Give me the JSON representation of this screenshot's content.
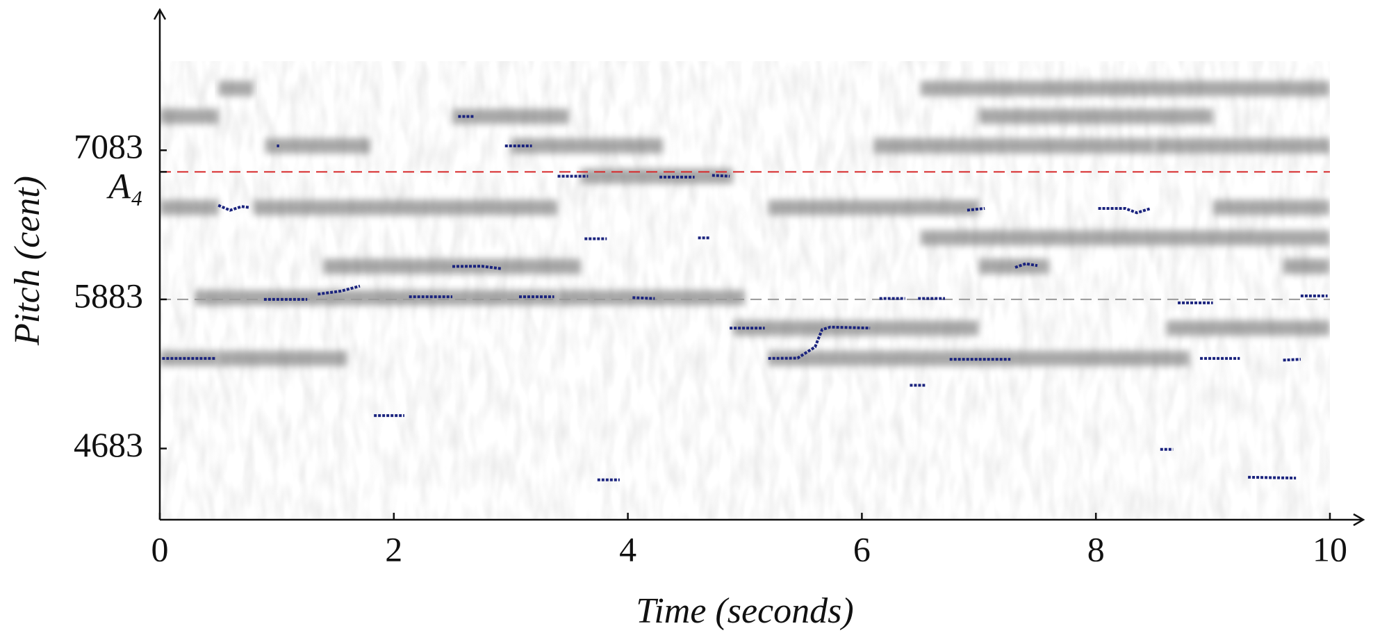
{
  "chart_data": {
    "type": "line",
    "x_label": "Time (seconds)",
    "y_label": "Pitch (cent)",
    "xlim": [
      0,
      10
    ],
    "xticks": [
      0,
      2,
      4,
      6,
      8,
      10
    ],
    "ylim": [
      4110,
      7800
    ],
    "yticks": [
      4683,
      5883,
      7083,
      {
        "value": 6909,
        "label": "A₄"
      }
    ],
    "reference_lines": [
      {
        "value": 6909,
        "color": "#d62728"
      },
      {
        "value": 5883,
        "color": "#999999"
      }
    ],
    "spectrogram": {
      "color": "#6e6e6e",
      "segments": [
        {
          "start": 0,
          "end": 0.5,
          "pitch": 5408
        },
        {
          "start": 0.5,
          "end": 1.6,
          "pitch": 5408
        },
        {
          "start": 0,
          "end": 0.5,
          "pitch": 6622
        },
        {
          "start": 0.8,
          "end": 3.4,
          "pitch": 6622
        },
        {
          "start": 0,
          "end": 0.5,
          "pitch": 7355
        },
        {
          "start": 0.5,
          "end": 0.8,
          "pitch": 7580
        },
        {
          "start": 0.9,
          "end": 1.8,
          "pitch": 7118
        },
        {
          "start": 1.4,
          "end": 3.6,
          "pitch": 6148
        },
        {
          "start": 0.3,
          "end": 3.4,
          "pitch": 5897
        },
        {
          "start": 3.4,
          "end": 5.0,
          "pitch": 5897
        },
        {
          "start": 4.9,
          "end": 7.0,
          "pitch": 5652
        },
        {
          "start": 5.2,
          "end": 8.8,
          "pitch": 5408
        },
        {
          "start": 8.6,
          "end": 10,
          "pitch": 5652
        },
        {
          "start": 5.2,
          "end": 7.0,
          "pitch": 6622
        },
        {
          "start": 6.5,
          "end": 10,
          "pitch": 6378
        },
        {
          "start": 6.1,
          "end": 8.5,
          "pitch": 7118
        },
        {
          "start": 7.0,
          "end": 9.0,
          "pitch": 7355
        },
        {
          "start": 8.5,
          "end": 10,
          "pitch": 7118
        },
        {
          "start": 2.5,
          "end": 3.5,
          "pitch": 7355
        },
        {
          "start": 3.6,
          "end": 4.9,
          "pitch": 6874
        },
        {
          "start": 3.0,
          "end": 4.3,
          "pitch": 7118
        },
        {
          "start": 9.0,
          "end": 10,
          "pitch": 6622
        },
        {
          "start": 7.0,
          "end": 7.6,
          "pitch": 6148
        },
        {
          "start": 9.6,
          "end": 10,
          "pitch": 6148
        },
        {
          "start": 6.5,
          "end": 10,
          "pitch": 7580
        }
      ]
    },
    "series": [
      {
        "color": "#1a237e",
        "x": [
          0.02,
          0.48,
          null,
          0.5,
          0.6,
          0.7,
          0.77,
          null,
          0.89,
          1.26,
          null,
          1.0,
          1.02,
          null,
          1.35,
          1.55,
          1.71,
          null,
          2.13,
          2.5,
          null,
          2.5,
          2.75,
          2.92,
          null,
          2.55,
          2.69,
          null,
          2.95,
          3.18,
          null,
          3.07,
          3.37,
          null,
          3.4,
          3.66,
          null,
          3.63,
          3.82,
          null,
          4.04,
          4.23,
          null,
          4.27,
          4.57,
          null,
          4.6,
          4.7,
          null,
          4.72,
          4.87,
          null,
          4.87,
          5.17,
          null,
          5.2,
          5.45,
          5.6,
          5.66,
          5.73,
          6.07,
          null,
          6.15,
          6.37,
          null,
          6.48,
          6.71,
          null,
          6.75,
          7.27,
          null,
          6.9,
          7.05,
          null,
          7.31,
          7.4,
          7.5,
          null,
          8.02,
          8.25,
          8.35,
          8.47,
          null,
          8.7,
          9.0,
          null,
          8.89,
          9.23,
          null,
          9.6,
          9.75,
          null,
          9.75,
          9.98,
          null,
          9.3,
          9.71,
          null,
          1.83,
          2.09,
          null,
          8.55,
          8.66,
          null,
          6.41,
          6.54,
          null,
          3.74,
          3.93
        ],
        "y": [
          5408,
          5408,
          null,
          6640,
          6600,
          6630,
          6622,
          null,
          5883,
          5883,
          null,
          7118,
          7118,
          null,
          5925,
          5950,
          5990,
          null,
          5904,
          5904,
          null,
          6148,
          6150,
          6130,
          null,
          7355,
          7355,
          null,
          7118,
          7118,
          null,
          5904,
          5904,
          null,
          6874,
          6874,
          null,
          6371,
          6371,
          null,
          5897,
          5890,
          null,
          6867,
          6867,
          null,
          6378,
          6378,
          null,
          6881,
          6874,
          null,
          5652,
          5652,
          null,
          5408,
          5410,
          5500,
          5640,
          5660,
          5652,
          null,
          5890,
          5890,
          null,
          5890,
          5890,
          null,
          5401,
          5401,
          null,
          6601,
          6615,
          null,
          6140,
          6170,
          6155,
          null,
          6615,
          6615,
          6580,
          6615,
          null,
          5855,
          5855,
          null,
          5408,
          5408,
          null,
          5394,
          5401,
          null,
          5911,
          5911,
          null,
          4452,
          4445,
          null,
          4948,
          4948,
          null,
          4676,
          4676,
          null,
          5192,
          5192,
          null,
          4431,
          4431
        ]
      }
    ]
  }
}
